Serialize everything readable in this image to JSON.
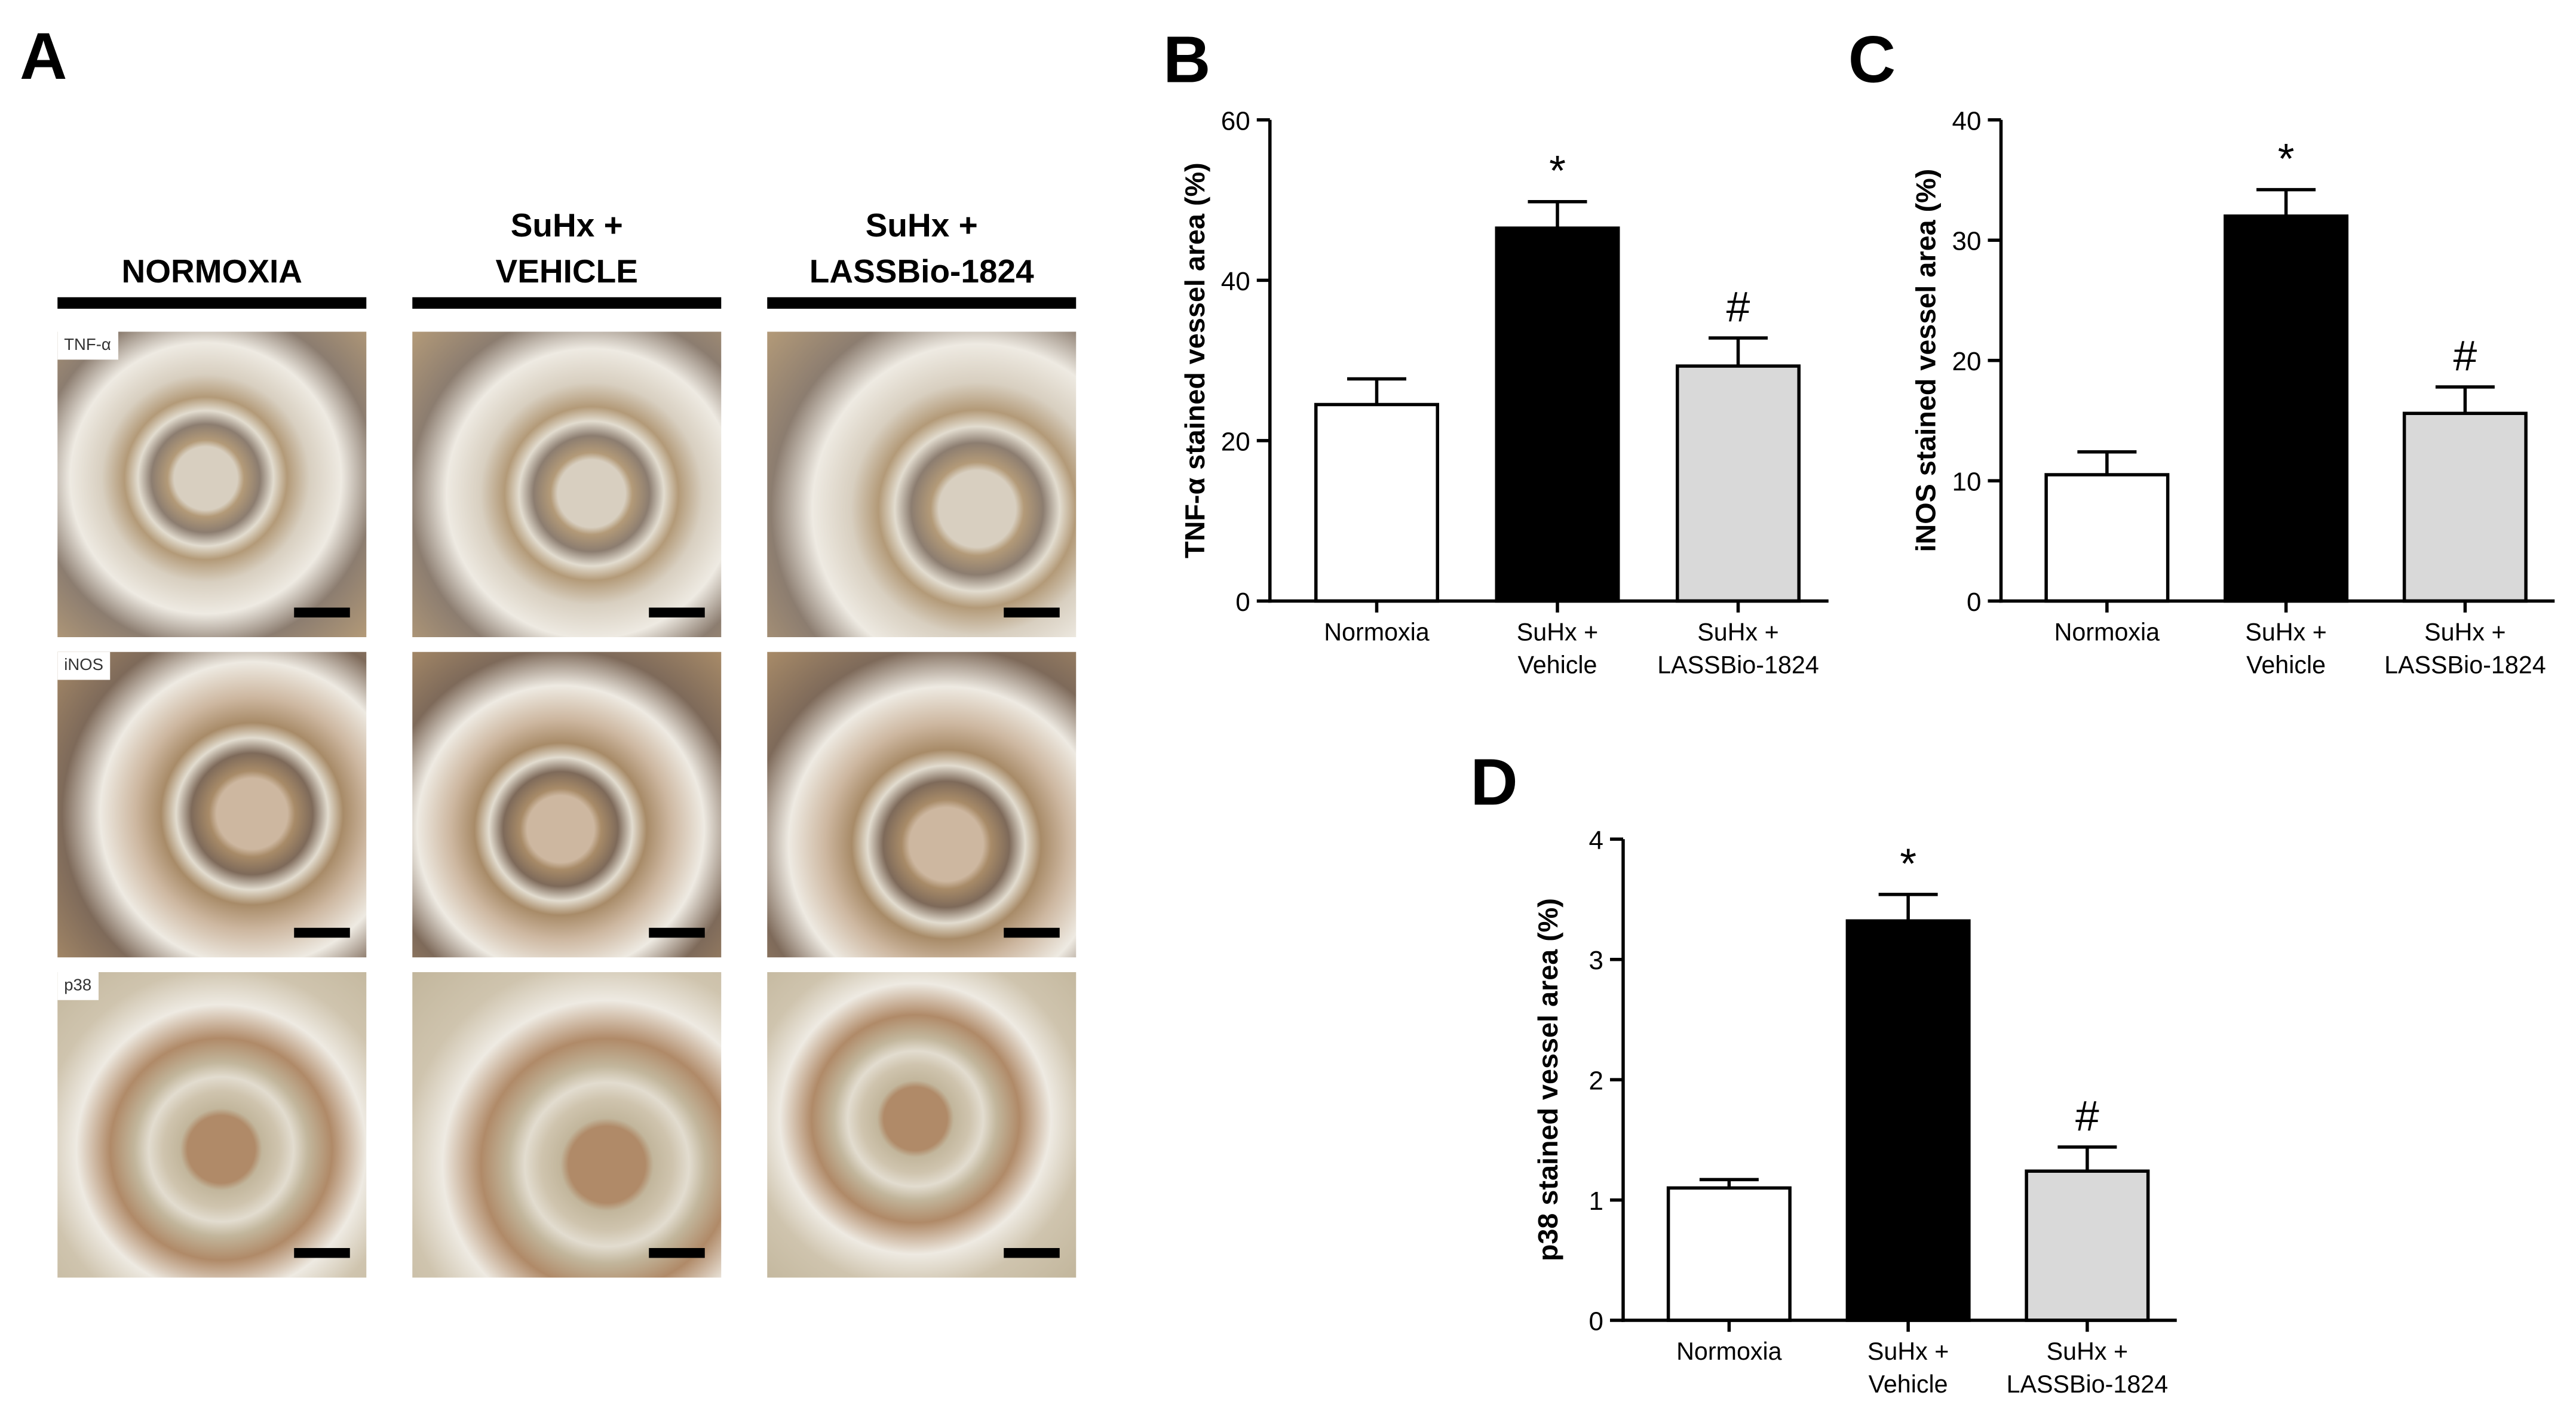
{
  "panel_a": {
    "label": "A",
    "columns": [
      "NORMOXIA",
      "SuHx +\nVEHICLE",
      "SuHx +\nLASSBio-1824"
    ],
    "rows": [
      "TNF-α",
      "iNOS",
      "p38"
    ]
  },
  "chart_data": [
    {
      "type": "bar",
      "label": "B",
      "ylabel": "TNF-α stained vessel area (%)",
      "categories": [
        "Normoxia",
        "SuHx +\nVehicle",
        "SuHx +\nLASSBio-1824"
      ],
      "values": [
        24.5,
        46.5,
        29.3
      ],
      "errors": [
        3.2,
        3.3,
        3.5
      ],
      "markers": [
        null,
        "*",
        "#"
      ],
      "colors": [
        "#ffffff",
        "#000000",
        "#d9d9d9"
      ],
      "ylim": [
        0,
        60
      ],
      "yticks": [
        0,
        20,
        40,
        60
      ]
    },
    {
      "type": "bar",
      "label": "C",
      "ylabel": "iNOS stained vessel area (%)",
      "categories": [
        "Normoxia",
        "SuHx +\nVehicle",
        "SuHx +\nLASSBio-1824"
      ],
      "values": [
        10.5,
        32,
        15.6
      ],
      "errors": [
        1.9,
        2.2,
        2.2
      ],
      "markers": [
        null,
        "*",
        "#"
      ],
      "colors": [
        "#ffffff",
        "#000000",
        "#d9d9d9"
      ],
      "ylim": [
        0,
        40
      ],
      "yticks": [
        0,
        10,
        20,
        30,
        40
      ]
    },
    {
      "type": "bar",
      "label": "D",
      "ylabel": "p38 stained vessel area (%)",
      "categories": [
        "Normoxia",
        "SuHx +\nVehicle",
        "SuHx +\nLASSBio-1824"
      ],
      "values": [
        1.1,
        3.32,
        1.24
      ],
      "errors": [
        0.07,
        0.22,
        0.2
      ],
      "markers": [
        null,
        "*",
        "#"
      ],
      "colors": [
        "#ffffff",
        "#000000",
        "#d9d9d9"
      ],
      "ylim": [
        0,
        4
      ],
      "yticks": [
        0,
        1,
        2,
        3,
        4
      ]
    }
  ]
}
